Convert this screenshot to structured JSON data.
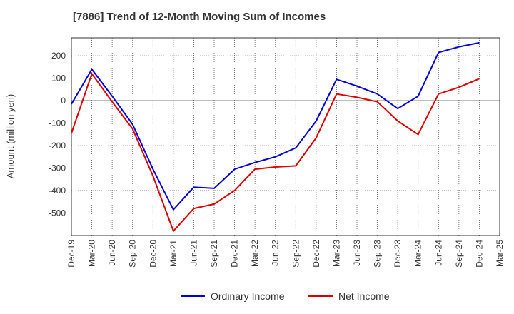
{
  "chart_data": {
    "type": "line",
    "title": "[7886]  Trend of 12-Month Moving Sum of Incomes",
    "xlabel": "",
    "ylabel": "Amount (million yen)",
    "categories": [
      "Dec-19",
      "Mar-20",
      "Jun-20",
      "Sep-20",
      "Dec-20",
      "Mar-21",
      "Jun-21",
      "Sep-21",
      "Dec-21",
      "Mar-22",
      "Jun-22",
      "Sep-22",
      "Dec-22",
      "Mar-23",
      "Jun-23",
      "Sep-23",
      "Dec-23",
      "Mar-24",
      "Jun-24",
      "Sep-24",
      "Dec-24",
      "Mar-25"
    ],
    "ylim": [
      -600,
      280
    ],
    "yticks": [
      200,
      100,
      0,
      -100,
      -200,
      -300,
      -400,
      -500
    ],
    "grid": true,
    "legend_position": "bottom",
    "series": [
      {
        "name": "Ordinary Income",
        "color": "#0000dd",
        "values": [
          -15,
          140,
          20,
          -105,
          -305,
          -485,
          -385,
          -390,
          -305,
          -275,
          -250,
          -210,
          -90,
          95,
          65,
          30,
          -35,
          20,
          215,
          240,
          258,
          null
        ]
      },
      {
        "name": "Net Income",
        "color": "#dd0000",
        "values": [
          -145,
          120,
          -5,
          -125,
          -335,
          -580,
          -480,
          -460,
          -400,
          -305,
          -295,
          -290,
          -165,
          30,
          15,
          -5,
          -90,
          -150,
          30,
          60,
          98,
          null
        ]
      }
    ]
  }
}
